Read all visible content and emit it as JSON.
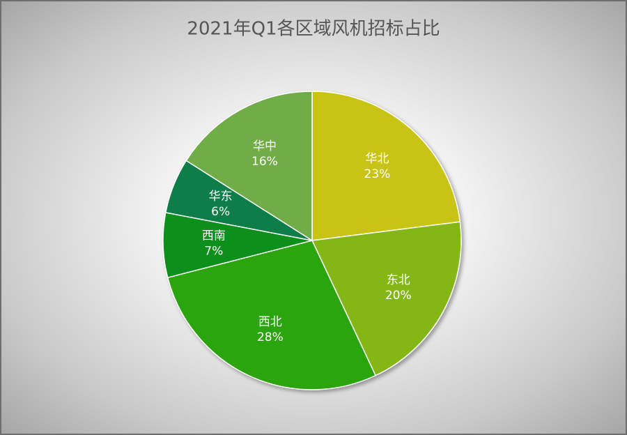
{
  "chart_data": {
    "type": "pie",
    "title": "2021年Q1各区域风机招标占比",
    "categories": [
      "华北",
      "东北",
      "西北",
      "西南",
      "华东",
      "华中"
    ],
    "values": [
      23,
      20,
      28,
      7,
      6,
      16
    ],
    "value_labels": [
      "23%",
      "20%",
      "28%",
      "7%",
      "6%",
      "16%"
    ],
    "colors": [
      "#c9c313",
      "#84b716",
      "#2aa511",
      "#0a8f1b",
      "#087e46",
      "#70ad47"
    ]
  }
}
